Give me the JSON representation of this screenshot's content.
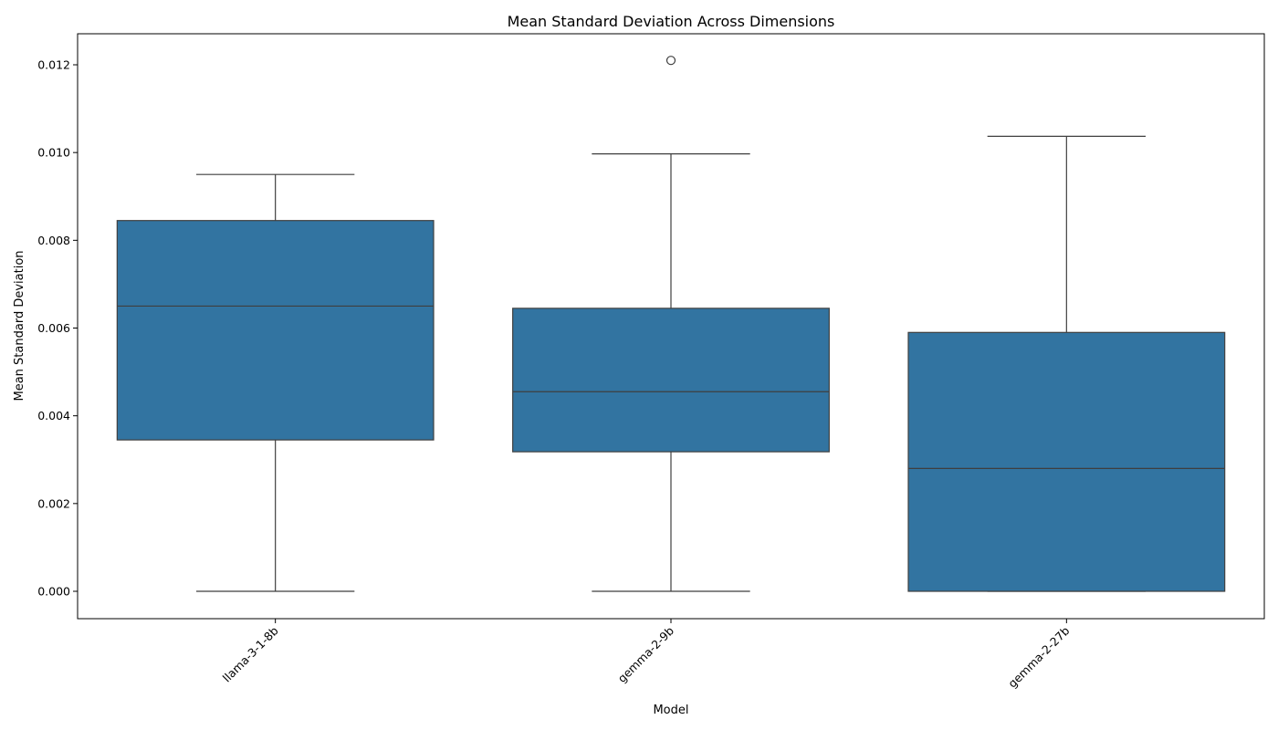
{
  "chart_data": {
    "type": "box",
    "title": "Mean Standard Deviation Across Dimensions",
    "xlabel": "Model",
    "ylabel": "Mean Standard Deviation",
    "ylim": [
      -0.0006,
      0.0127
    ],
    "yticks": [
      0.0,
      0.002,
      0.004,
      0.006,
      0.008,
      0.01,
      0.012
    ],
    "ytick_labels": [
      "0.000",
      "0.002",
      "0.004",
      "0.006",
      "0.008",
      "0.010",
      "0.012"
    ],
    "categories": [
      "llama-3-1-8b",
      "gemma-2-9b",
      "gemma-2-27b"
    ],
    "boxes": [
      {
        "whisker_low": 0.0,
        "q1": 0.00345,
        "median": 0.0065,
        "q3": 0.00845,
        "whisker_high": 0.0095,
        "outliers": []
      },
      {
        "whisker_low": 0.0,
        "q1": 0.00318,
        "median": 0.00455,
        "q3": 0.00645,
        "whisker_high": 0.00997,
        "outliers": [
          0.0121
        ]
      },
      {
        "whisker_low": 0.0,
        "q1": 0.0,
        "median": 0.0028,
        "q3": 0.0059,
        "whisker_high": 0.01037,
        "outliers": []
      }
    ],
    "box_color": "#3274a1",
    "line_color": "#3f3f3f",
    "grid": false,
    "legend": "none"
  }
}
